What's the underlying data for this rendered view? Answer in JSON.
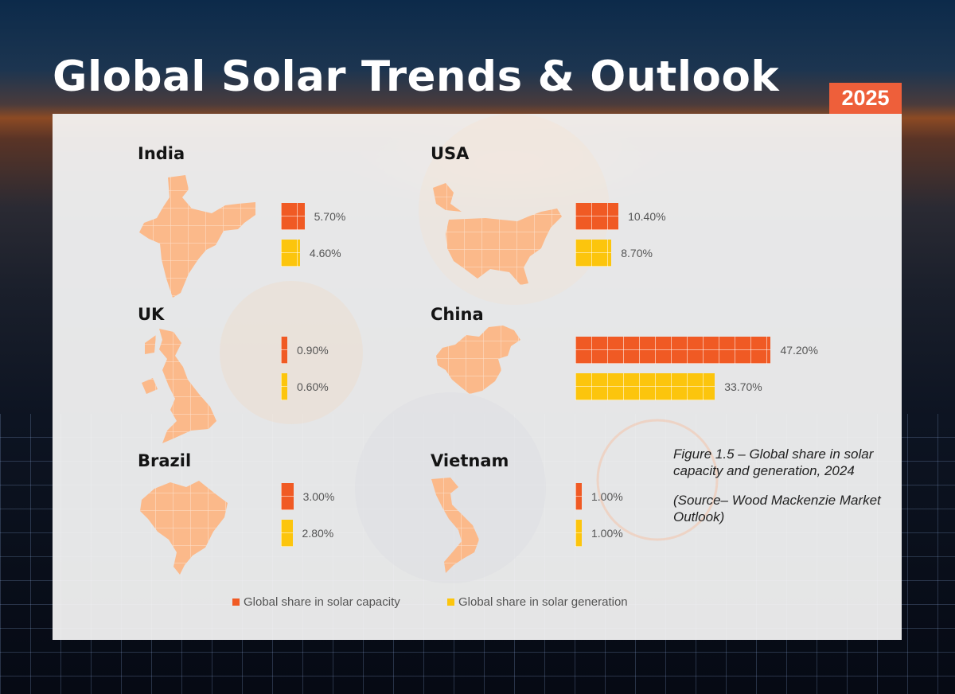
{
  "header": {
    "title": "Global Solar Trends & Outlook",
    "year_badge": "2025"
  },
  "colors": {
    "capacity": "#f05a24",
    "generation": "#fcc50d",
    "map_fill": "#fbb98a",
    "badge": "#ee5f3a"
  },
  "chart_data": {
    "type": "bar",
    "orientation": "horizontal",
    "unit": "%",
    "categories": [
      "India",
      "USA",
      "UK",
      "China",
      "Brazil",
      "Vietnam"
    ],
    "series": [
      {
        "name": "Global share in solar capacity",
        "values": [
          5.7,
          10.4,
          0.9,
          47.2,
          3.0,
          1.0
        ]
      },
      {
        "name": "Global share in solar generation",
        "values": [
          4.6,
          8.7,
          0.6,
          33.7,
          2.8,
          1.0
        ]
      }
    ],
    "labels": {
      "capacity": [
        "5.70%",
        "10.40%",
        "0.90%",
        "47.20%",
        "3.00%",
        "1.00%"
      ],
      "generation": [
        "4.60%",
        "8.70%",
        "0.60%",
        "33.70%",
        "2.80%",
        "1.00%"
      ]
    },
    "legend_position": "bottom",
    "grid": false
  },
  "caption": {
    "figure": "Figure 1.5 – Global share in solar capacity and generation, 2024",
    "source": "(Source– Wood Mackenzie Market Outlook)"
  },
  "icons": [
    "india-map-icon",
    "usa-map-icon",
    "uk-map-icon",
    "china-map-icon",
    "brazil-map-icon",
    "vietnam-map-icon"
  ]
}
